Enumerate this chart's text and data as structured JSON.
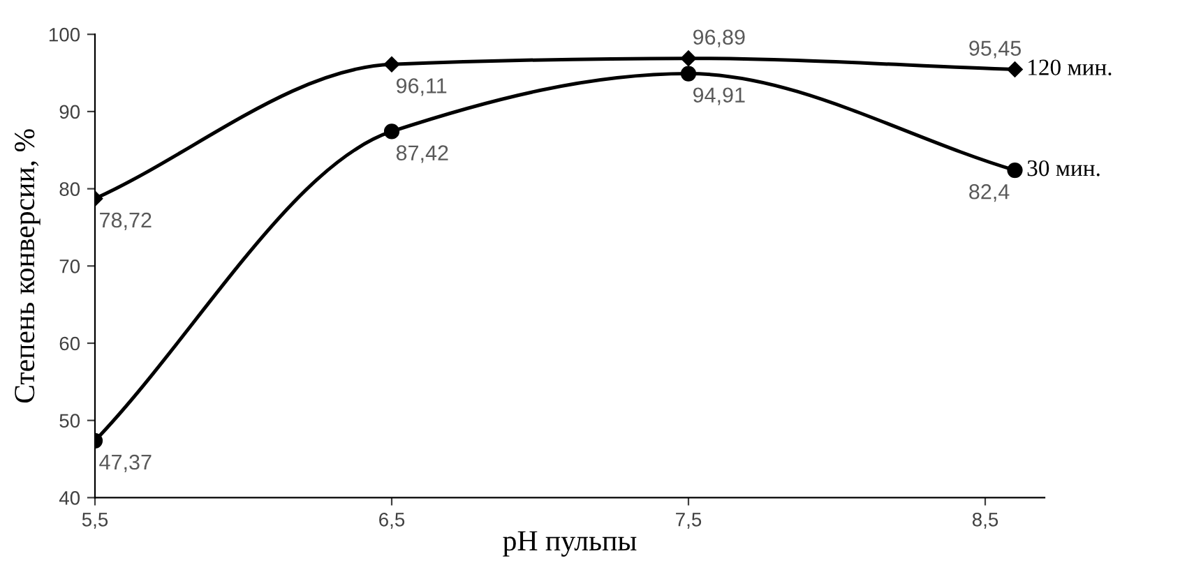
{
  "chart_data": {
    "type": "line",
    "xlabel": "pH пульпы",
    "ylabel": "Степень конверсии, %",
    "x": [
      5.5,
      6.5,
      7.5,
      8.6
    ],
    "xlim": [
      5.5,
      8.7
    ],
    "ylim": [
      40,
      100
    ],
    "xticks": [
      {
        "value": 5.5,
        "label": "5,5"
      },
      {
        "value": 6.5,
        "label": "6,5"
      },
      {
        "value": 7.5,
        "label": "7,5"
      },
      {
        "value": 8.5,
        "label": "8,5"
      }
    ],
    "yticks": [
      40,
      50,
      60,
      70,
      80,
      90,
      100
    ],
    "grid": false,
    "legend": false,
    "series": [
      {
        "name": "120 мин.",
        "color": "#000000",
        "marker": "diamond",
        "values": [
          78.72,
          96.11,
          96.89,
          95.45
        ],
        "value_labels": [
          "78,72",
          "96,11",
          "96,89",
          "95,45"
        ]
      },
      {
        "name": "30 мин.",
        "color": "#000000",
        "marker": "circle",
        "values": [
          47.37,
          87.42,
          94.91,
          82.4
        ],
        "value_labels": [
          "47,37",
          "87,42",
          "94,91",
          "82,4"
        ]
      }
    ]
  }
}
